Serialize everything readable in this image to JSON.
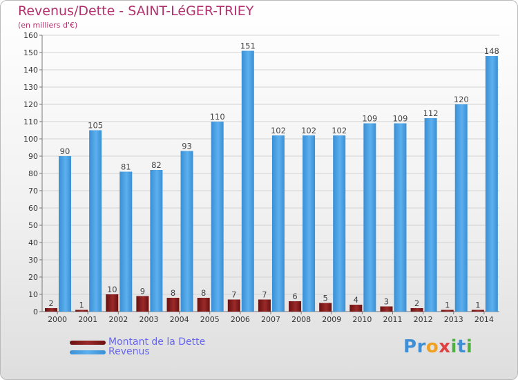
{
  "chart_data": {
    "type": "bar",
    "title": "Revenus/Dette - SAINT-LéGER-TRIEY",
    "subtitle": "(en milliers d'€)",
    "categories": [
      "2000",
      "2001",
      "2002",
      "2003",
      "2004",
      "2005",
      "2006",
      "2007",
      "2008",
      "2009",
      "2010",
      "2011",
      "2012",
      "2013",
      "2014"
    ],
    "series": [
      {
        "name": "Montant de la Dette",
        "color": "#7a1a1a",
        "values": [
          2,
          1,
          10,
          9,
          8,
          8,
          7,
          7,
          6,
          5,
          4,
          3,
          2,
          1,
          1
        ]
      },
      {
        "name": "Revenus",
        "color": "#4a9fe0",
        "values": [
          90,
          105,
          81,
          82,
          93,
          110,
          151,
          102,
          102,
          102,
          109,
          109,
          112,
          120,
          148
        ]
      }
    ],
    "ylim": [
      0,
      160
    ],
    "yticks": [
      0,
      10,
      20,
      30,
      40,
      50,
      60,
      70,
      80,
      90,
      100,
      110,
      120,
      130,
      140,
      150,
      160
    ],
    "grid": true,
    "legend_position": "bottom-left"
  },
  "logo": {
    "letters": [
      {
        "ch": "P",
        "color": "#3f8fd6"
      },
      {
        "ch": "r",
        "color": "#3f8fd6"
      },
      {
        "ch": "o",
        "color": "#f0a020"
      },
      {
        "ch": "x",
        "color": "#e04040"
      },
      {
        "ch": "i",
        "color": "#50b040"
      },
      {
        "ch": "t",
        "color": "#3f8fd6"
      },
      {
        "ch": "i",
        "color": "#50b040"
      }
    ]
  }
}
